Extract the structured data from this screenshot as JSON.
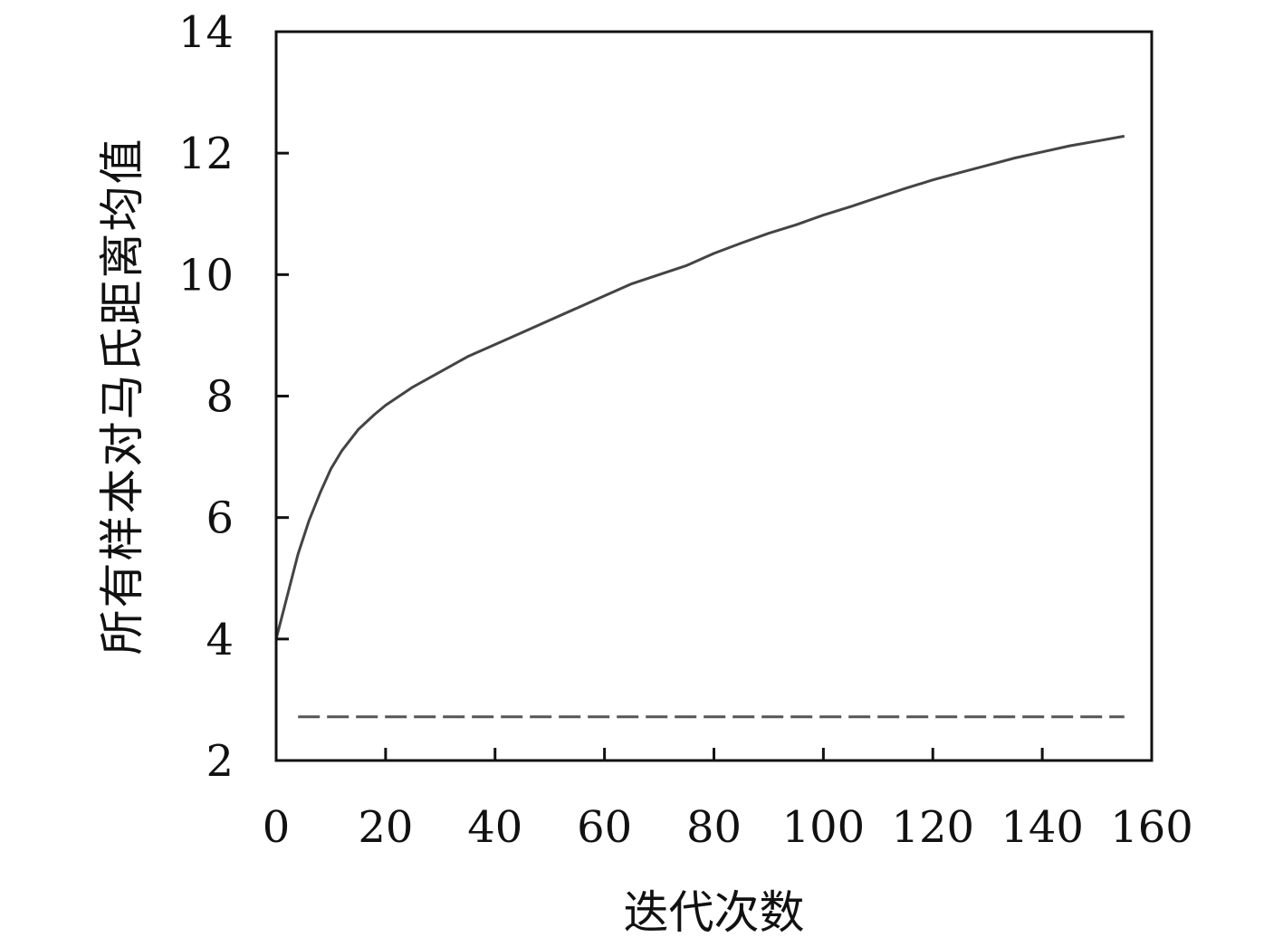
{
  "chart_data": {
    "type": "line",
    "title": "",
    "xlabel": "迭代次数",
    "ylabel": "所有样本对马氏距离均值",
    "xlim": [
      0,
      160
    ],
    "ylim": [
      2,
      14
    ],
    "xticks": [
      "0",
      "20",
      "40",
      "60",
      "80",
      "100",
      "120",
      "140",
      "160"
    ],
    "yticks": [
      "2",
      "4",
      "6",
      "8",
      "10",
      "12",
      "14"
    ],
    "grid": false,
    "legend": "none",
    "series": [
      {
        "style": "solid",
        "color": "#444444",
        "x": [
          0,
          2,
          4,
          6,
          8,
          10,
          12,
          15,
          18,
          20,
          25,
          30,
          35,
          40,
          45,
          50,
          55,
          60,
          65,
          70,
          75,
          80,
          85,
          90,
          95,
          100,
          105,
          110,
          115,
          120,
          125,
          130,
          135,
          140,
          145,
          150,
          155
        ],
        "y": [
          4.0,
          4.7,
          5.4,
          5.95,
          6.4,
          6.8,
          7.1,
          7.45,
          7.7,
          7.85,
          8.15,
          8.4,
          8.65,
          8.85,
          9.05,
          9.25,
          9.45,
          9.65,
          9.85,
          10.0,
          10.15,
          10.35,
          10.52,
          10.68,
          10.82,
          10.98,
          11.12,
          11.27,
          11.42,
          11.56,
          11.68,
          11.8,
          11.92,
          12.02,
          12.12,
          12.2,
          12.28
        ]
      },
      {
        "style": "dashed",
        "color": "#555555",
        "x": [
          4,
          155
        ],
        "y": [
          2.72,
          2.72
        ]
      }
    ]
  }
}
